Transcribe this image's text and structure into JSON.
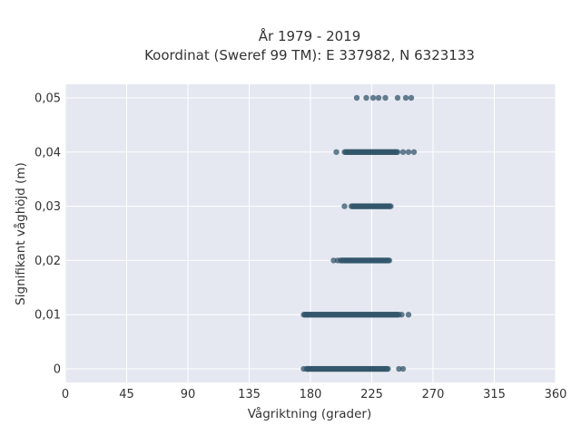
{
  "chart_data": {
    "type": "scatter",
    "title_line1": "År 1979 - 2019",
    "title_line2": "Koordinat (Sweref 99 TM): E 337982, N 6323133",
    "xlabel": "Vågriktning (grader)",
    "ylabel": "Signifikant våghöjd (m)",
    "xlim": [
      0,
      360
    ],
    "ylim": [
      -0.0025,
      0.0525
    ],
    "xticks": [
      0,
      45,
      90,
      135,
      180,
      225,
      270,
      315,
      360
    ],
    "xtick_labels": [
      "0",
      "45",
      "90",
      "135",
      "180",
      "225",
      "270",
      "315",
      "360"
    ],
    "yticks": [
      0,
      0.01,
      0.02,
      0.03,
      0.04,
      0.05
    ],
    "ytick_labels": [
      "0",
      "0,01",
      "0,02",
      "0,03",
      "0,04",
      "0,05"
    ],
    "grid": true,
    "marker_color": "#34566b",
    "plot_bg": "#e5e8f1",
    "bands": [
      {
        "y": 0.0,
        "x_min": 175,
        "x_max": 250,
        "dense_min": 177,
        "dense_max": 237,
        "isolated": [
          175,
          178,
          245,
          248
        ]
      },
      {
        "y": 0.01,
        "x_min": 174,
        "x_max": 254,
        "dense_min": 175,
        "dense_max": 245,
        "isolated": [
          247,
          252
        ]
      },
      {
        "y": 0.02,
        "x_min": 197,
        "x_max": 239,
        "dense_min": 202,
        "dense_max": 238,
        "isolated": [
          197,
          200
        ]
      },
      {
        "y": 0.03,
        "x_min": 205,
        "x_max": 240,
        "dense_min": 210,
        "dense_max": 239,
        "isolated": [
          205
        ]
      },
      {
        "y": 0.04,
        "x_min": 199,
        "x_max": 257,
        "dense_min": 205,
        "dense_max": 244,
        "isolated": [
          199,
          248,
          252,
          256
        ]
      },
      {
        "y": 0.05,
        "x_min": 214,
        "x_max": 254,
        "dense_min": 0,
        "dense_max": 0,
        "isolated": [
          214,
          221,
          226,
          230,
          235,
          244,
          250,
          254
        ]
      }
    ]
  }
}
